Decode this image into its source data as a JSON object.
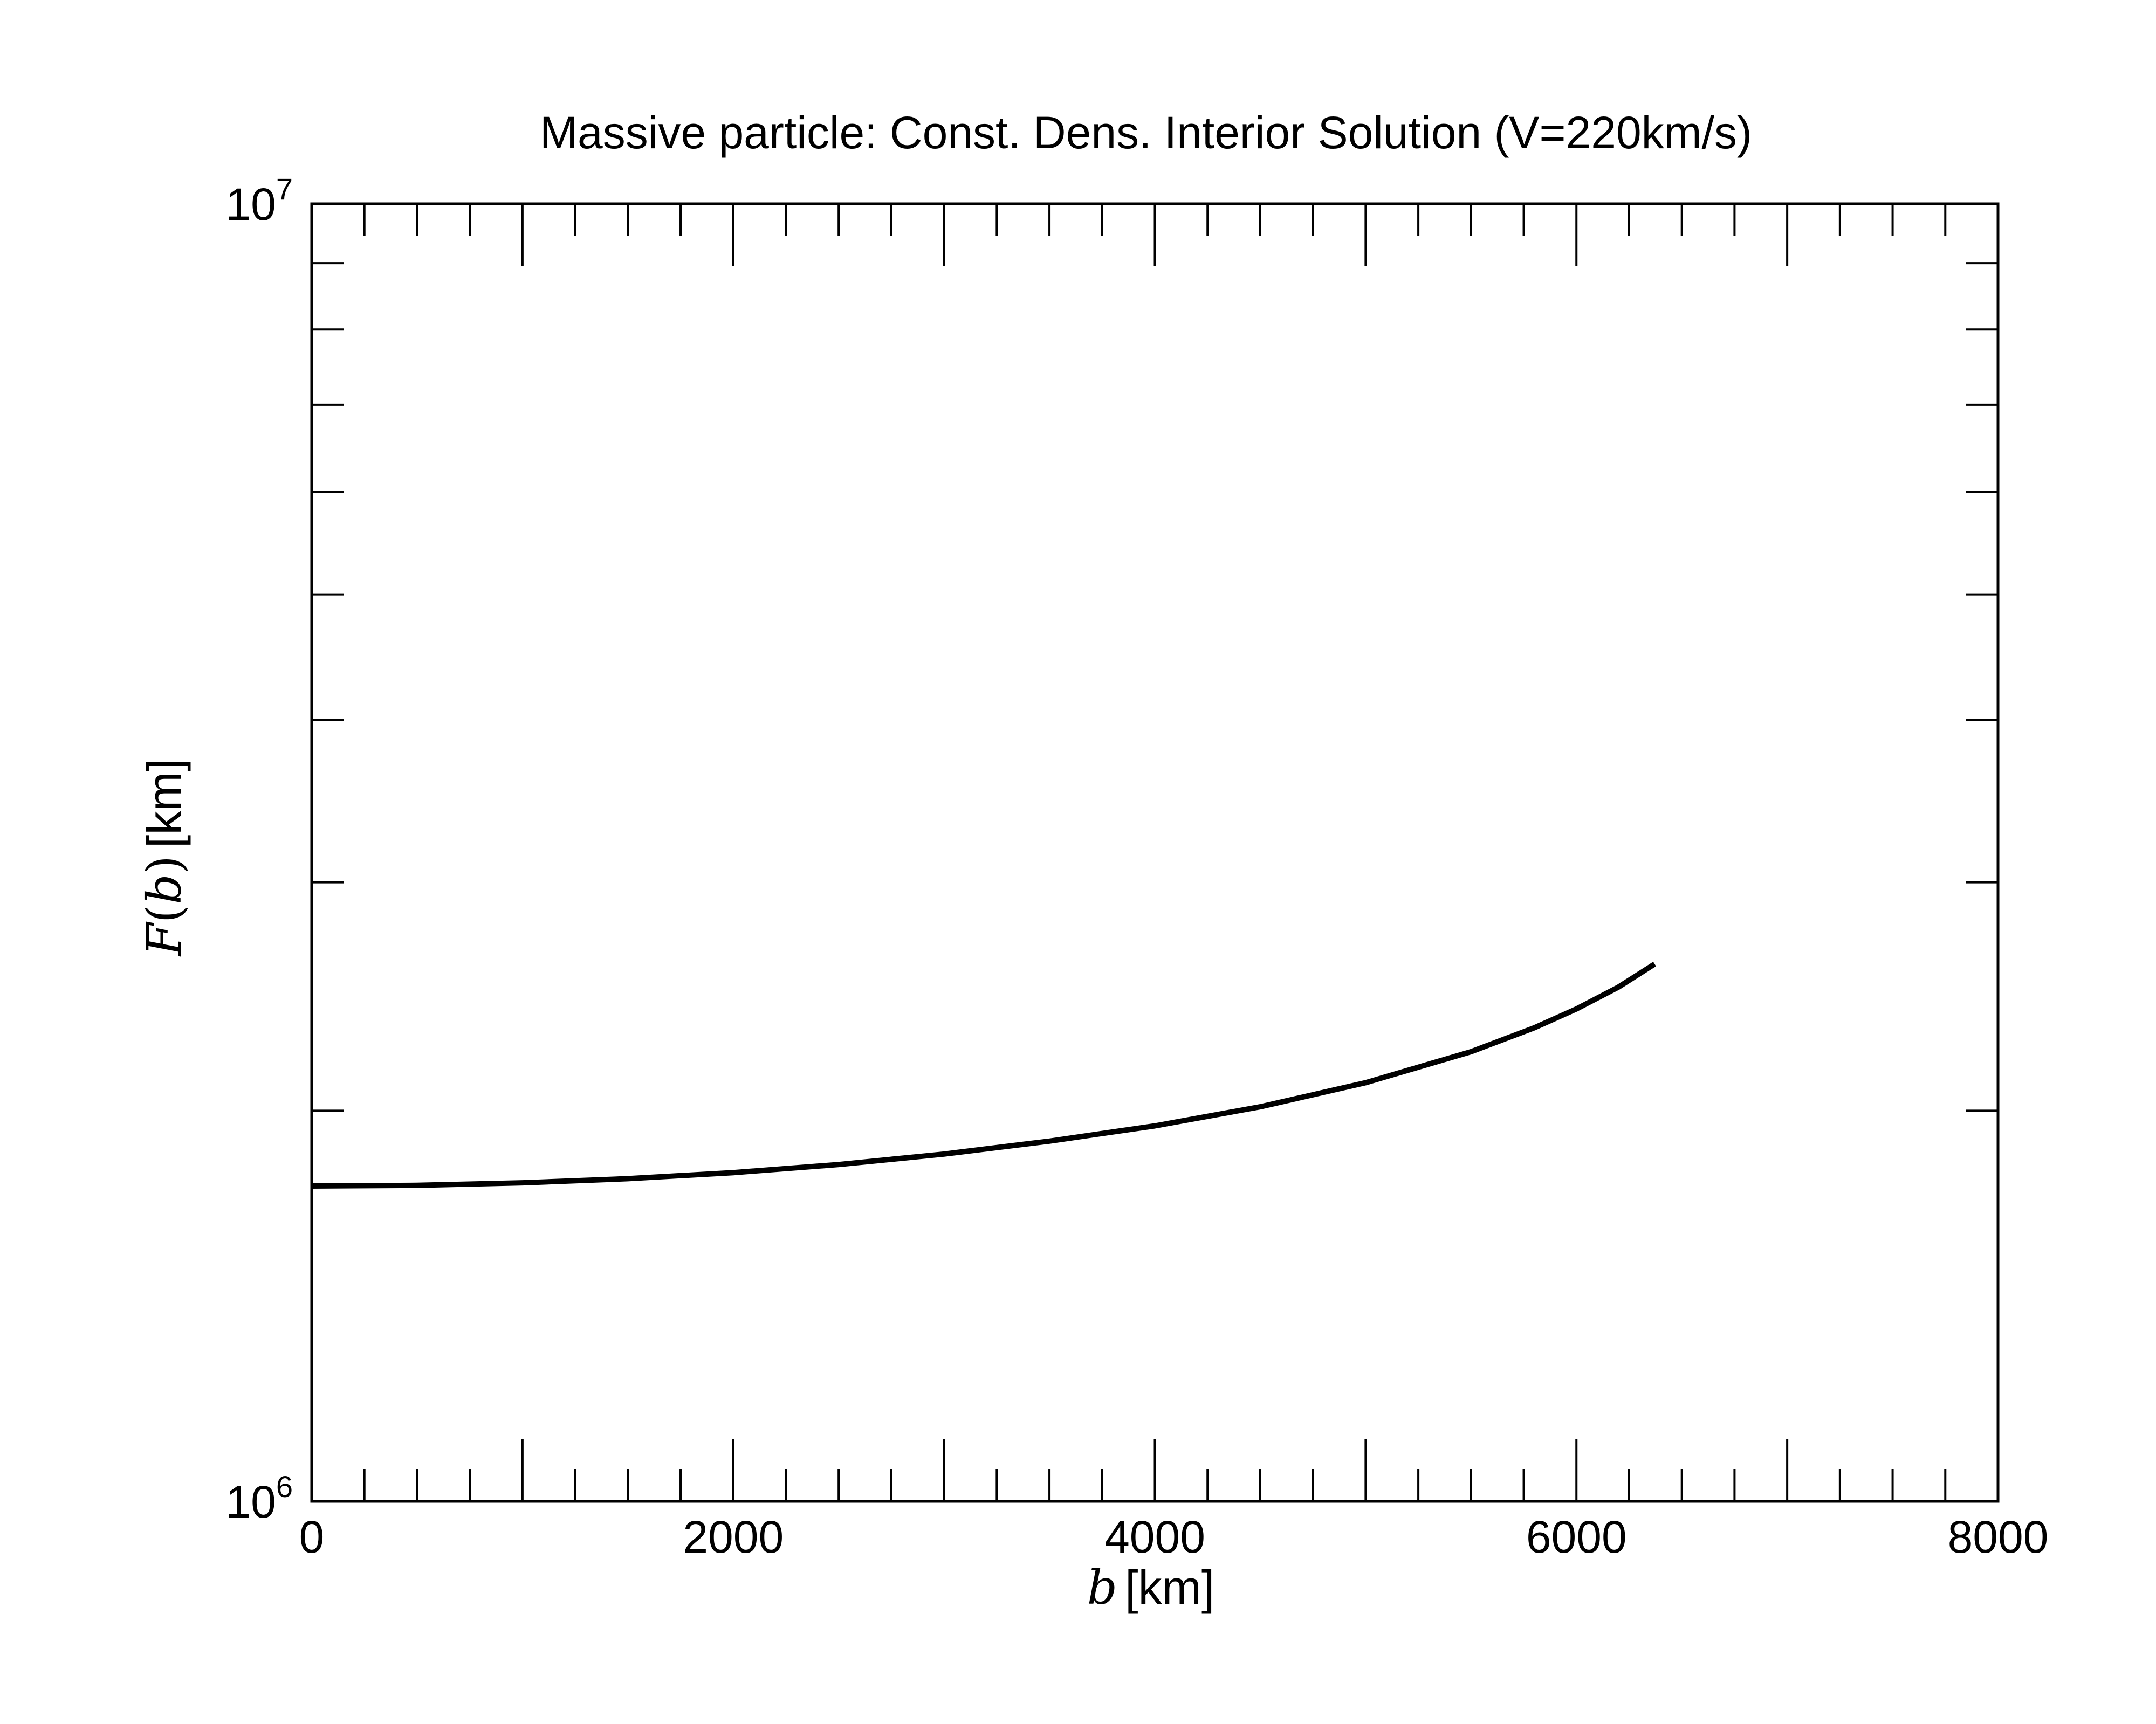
{
  "chart_data": {
    "type": "line",
    "title": "Massive particle: Const. Dens. Interior Solution (V=220km/s)",
    "xlabel": {
      "var": "b",
      "unit": "[km]"
    },
    "ylabel": {
      "func": "F",
      "var": "b",
      "unit": "[km]"
    },
    "xlim": [
      0,
      8000
    ],
    "ylim": [
      1000000,
      10000000
    ],
    "yscale": "log",
    "xticks": [
      "0",
      "2000",
      "4000",
      "6000",
      "8000"
    ],
    "yticks": [
      {
        "base": "10",
        "exp": "6"
      },
      {
        "base": "10",
        "exp": "7"
      }
    ],
    "grid": false,
    "series": [
      {
        "color": "#000000",
        "x": [
          0,
          500,
          1000,
          1500,
          2000,
          2500,
          3000,
          3500,
          4000,
          4500,
          5000,
          5500,
          5800,
          6000,
          6200,
          6371
        ],
        "y": [
          1750000,
          1752000,
          1760000,
          1773000,
          1792000,
          1818000,
          1852000,
          1895000,
          1947000,
          2014000,
          2102000,
          2221000,
          2317000,
          2396000,
          2491000,
          2595000
        ]
      }
    ]
  }
}
